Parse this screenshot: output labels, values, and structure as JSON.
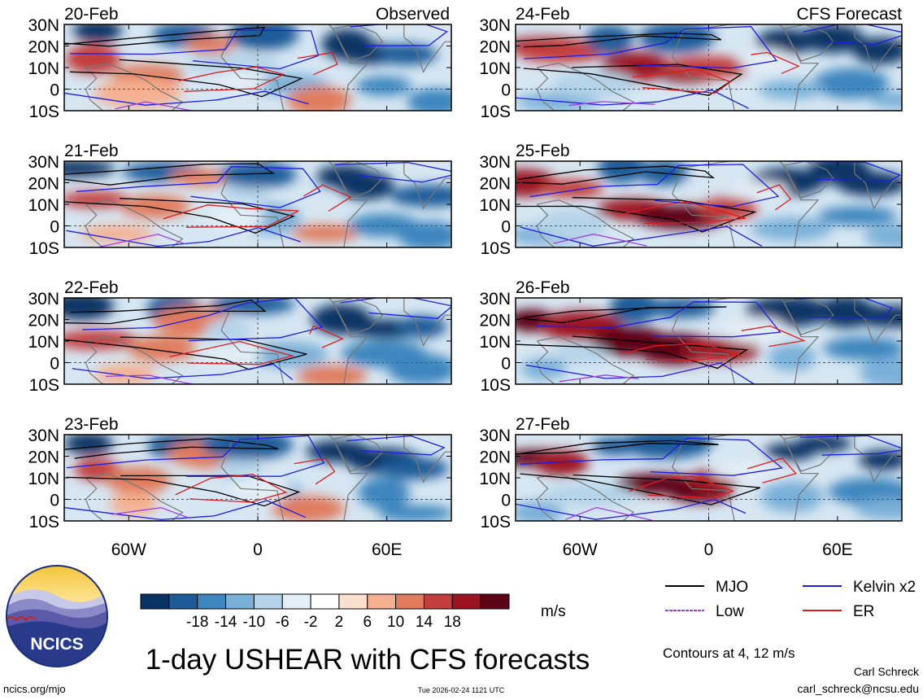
{
  "chart_data": {
    "type": "heatmap",
    "title": "1-day USHEAR with CFS forecasts",
    "panel_group_labels": {
      "observed": "Observed",
      "forecast": "CFS Forecast"
    },
    "panels": [
      {
        "date": "20-Feb",
        "source": "observed"
      },
      {
        "date": "21-Feb",
        "source": "observed"
      },
      {
        "date": "22-Feb",
        "source": "observed"
      },
      {
        "date": "23-Feb",
        "source": "observed"
      },
      {
        "date": "24-Feb",
        "source": "forecast"
      },
      {
        "date": "25-Feb",
        "source": "forecast"
      },
      {
        "date": "26-Feb",
        "source": "forecast"
      },
      {
        "date": "27-Feb",
        "source": "forecast"
      }
    ],
    "lat_ticks": [
      "30N",
      "20N",
      "10N",
      "0",
      "10S"
    ],
    "lon_ticks": [
      "60W",
      "0",
      "60E"
    ],
    "lat_range": [
      -10,
      30
    ],
    "lon_range": [
      -90,
      90
    ],
    "colorbar": {
      "labels": [
        "-18",
        "-14",
        "-10",
        "-6",
        "-2",
        "2",
        "6",
        "10",
        "14",
        "18"
      ],
      "colors": [
        "#083465",
        "#1e5c99",
        "#3e86be",
        "#7ab0d8",
        "#b5d4e9",
        "#e3eef6",
        "#ffffff",
        "#fbe0d0",
        "#f4b090",
        "#e07b5d",
        "#c23e3c",
        "#9c1322",
        "#5e0418"
      ],
      "units": "m/s"
    },
    "legend": [
      {
        "label": "MJO",
        "color": "#000000"
      },
      {
        "label": "Kelvin x2",
        "color": "#1c1ce6"
      },
      {
        "label": "Low",
        "color": "#a040e0"
      },
      {
        "label": "ER",
        "color": "#e01c1c"
      }
    ],
    "contour_note": "Contours at 4, 12 m/s"
  },
  "footer": {
    "url": "ncics.org/mjo",
    "timestamp": "Tue 2026-02-24 1121 UTC",
    "author": "Carl Schreck",
    "email": "carl_schreck@ncsu.edu",
    "logo_text": "NCICS"
  }
}
